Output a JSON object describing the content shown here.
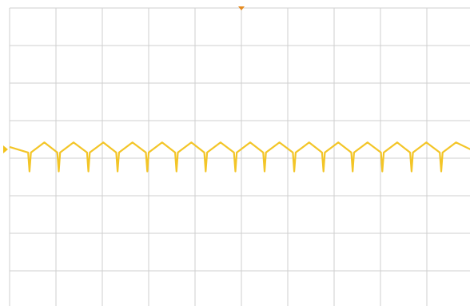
{
  "chart_data": {
    "type": "line",
    "x": [
      0,
      0.4,
      0.43,
      0.46,
      0.75,
      1.03,
      1.06,
      1.09,
      1.38,
      1.67,
      1.7,
      1.73,
      2.02,
      2.3,
      2.33,
      2.36,
      2.65,
      2.94,
      2.97,
      3.0,
      3.29,
      3.57,
      3.6,
      3.63,
      3.92,
      4.2,
      4.23,
      4.26,
      4.55,
      4.84,
      4.87,
      4.9,
      5.19,
      5.47,
      5.5,
      5.53,
      5.82,
      6.11,
      6.14,
      6.17,
      6.46,
      6.74,
      6.77,
      6.8,
      7.09,
      7.37,
      7.4,
      7.43,
      7.72,
      8.01,
      8.04,
      8.07,
      8.36,
      8.64,
      8.67,
      8.7,
      8.99,
      9.28,
      9.31,
      9.34,
      9.63,
      10
    ],
    "values": [
      0.3,
      0.15,
      -0.35,
      0.15,
      0.42,
      0.15,
      -0.35,
      0.15,
      0.42,
      0.15,
      -0.35,
      0.15,
      0.42,
      0.15,
      -0.35,
      0.15,
      0.42,
      0.15,
      -0.35,
      0.15,
      0.42,
      0.15,
      -0.35,
      0.15,
      0.42,
      0.15,
      -0.35,
      0.15,
      0.42,
      0.15,
      -0.35,
      0.15,
      0.42,
      0.15,
      -0.35,
      0.15,
      0.42,
      0.15,
      -0.35,
      0.15,
      0.42,
      0.15,
      -0.35,
      0.15,
      0.42,
      0.15,
      -0.35,
      0.15,
      0.42,
      0.15,
      -0.35,
      0.15,
      0.42,
      0.15,
      -0.35,
      0.15,
      0.42,
      0.15,
      -0.35,
      0.15,
      0.42,
      0.2
    ],
    "color": "#f2c21b",
    "xlim": [
      0,
      10
    ],
    "xticks": [
      0,
      1,
      2,
      3,
      4,
      5,
      6,
      7,
      8,
      9,
      10
    ],
    "ylim": [
      -4,
      4
    ],
    "yticks": [
      -4,
      -3,
      -2,
      -1,
      0,
      1,
      2,
      3,
      4
    ],
    "grid": true
  }
}
